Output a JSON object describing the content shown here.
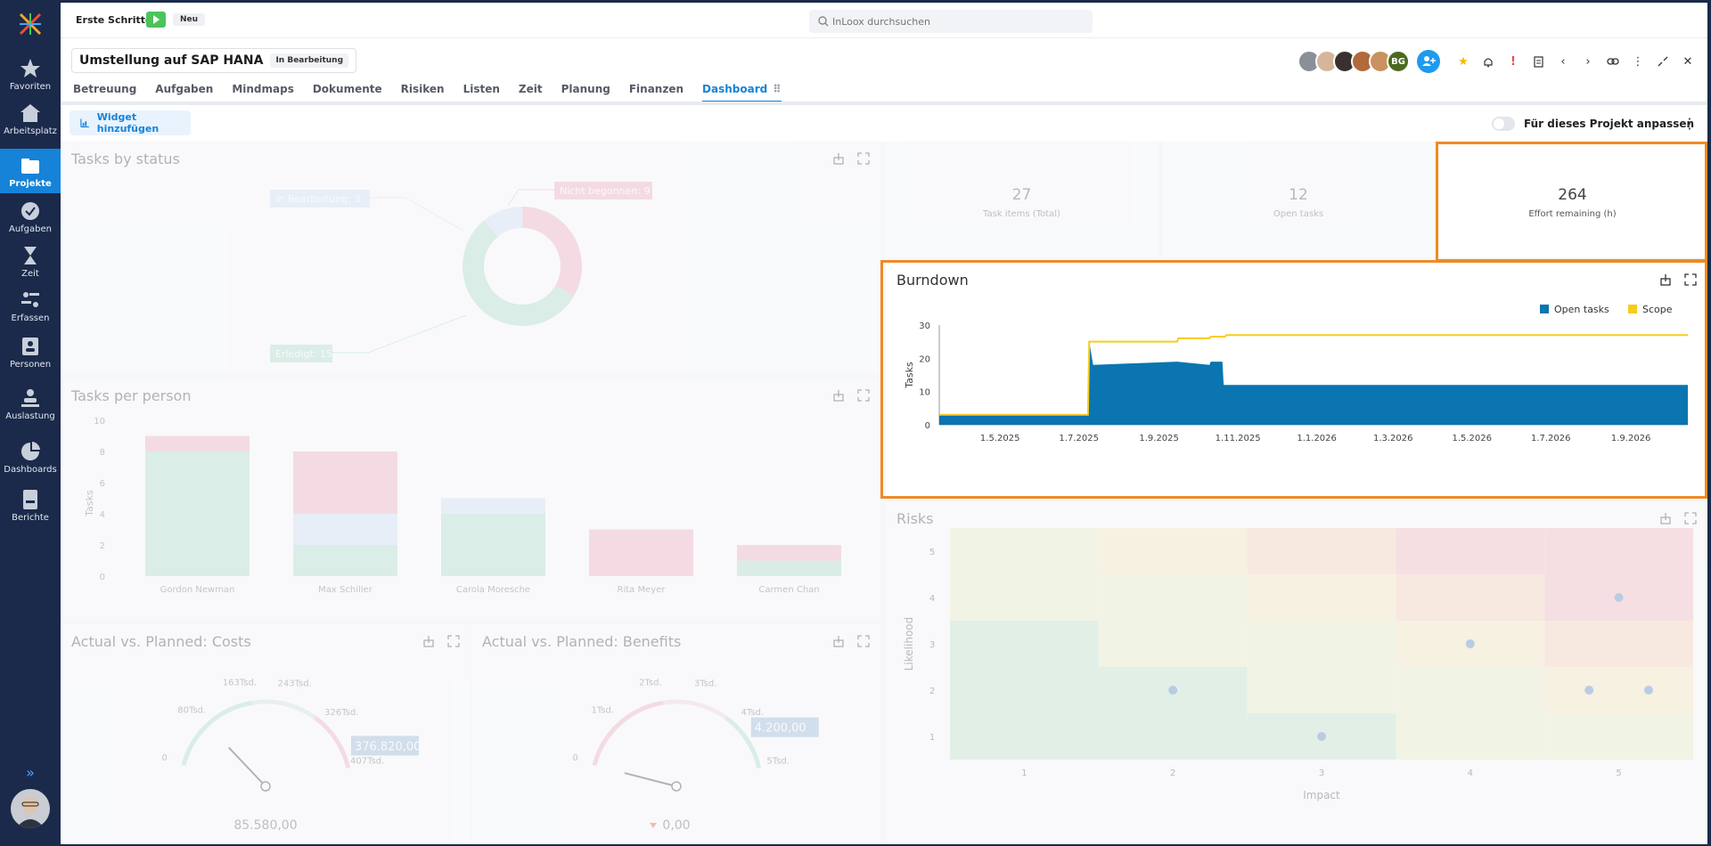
{
  "topbar": {
    "first_steps_label": "Erste Schritte:",
    "new_badge": "Neu",
    "search_placeholder": "InLoox durchsuchen"
  },
  "sidebar": {
    "items": [
      {
        "label": "Favoriten",
        "icon": "star-icon"
      },
      {
        "label": "Arbeitsplatz",
        "icon": "home-icon"
      },
      {
        "label": "Projekte",
        "icon": "folder-icon"
      },
      {
        "label": "Aufgaben",
        "icon": "check-circle-icon"
      },
      {
        "label": "Zeit",
        "icon": "hourglass-icon"
      },
      {
        "label": "Erfassen",
        "icon": "capture-icon"
      },
      {
        "label": "Personen",
        "icon": "contact-card-icon"
      },
      {
        "label": "Auslastung",
        "icon": "workload-icon"
      },
      {
        "label": "Dashboards",
        "icon": "pie-chart-icon"
      },
      {
        "label": "Berichte",
        "icon": "report-icon"
      }
    ],
    "expand": "»"
  },
  "project": {
    "title": "Umstellung auf SAP HANA",
    "status": "In Bearbeitung",
    "avatar_initials": "BG",
    "tabs": [
      "Betreuung",
      "Aufgaben",
      "Mindmaps",
      "Dokumente",
      "Risiken",
      "Listen",
      "Zeit",
      "Planung",
      "Finanzen",
      "Dashboard"
    ],
    "active_tab": "Dashboard",
    "dashboard_tab_suffix": "⠿"
  },
  "toolbar": {
    "add_widget": "Widget hinzufügen",
    "customize_toggle": "Für dieses Projekt anpassen"
  },
  "widgets": {
    "tasks_by_status": {
      "title": "Tasks by status",
      "labels": [
        "In Bearbeitung: 3",
        "Nicht begonnen: 9",
        "Erledigt: 15"
      ],
      "values": [
        3,
        9,
        15
      ],
      "colors": [
        "#cfe0f5",
        "#f2a9bc",
        "#a8dcc6"
      ]
    },
    "tasks_per_person": {
      "title": "Tasks per person",
      "ylabel": "Tasks",
      "yticks": [
        "10",
        "8",
        "6",
        "4",
        "2",
        "0"
      ],
      "persons": [
        "Gordon Newman",
        "Max Schiller",
        "Carola Moresche",
        "Rita Meyer",
        "Carmen Chan"
      ],
      "stacks": [
        {
          "done": 8,
          "inprogress": 0,
          "notstarted": 1
        },
        {
          "done": 2,
          "inprogress": 2,
          "notstarted": 4
        },
        {
          "done": 4,
          "inprogress": 1,
          "notstarted": 0
        },
        {
          "done": 0,
          "inprogress": 0,
          "notstarted": 3
        },
        {
          "done": 1,
          "inprogress": 0,
          "notstarted": 1
        }
      ]
    },
    "costs": {
      "title": "Actual vs. Planned: Costs",
      "ticks": [
        "0",
        "80Tsd.",
        "163Tsd.",
        "243Tsd.",
        "326Tsd.",
        "407Tsd."
      ],
      "planned_label": "376.820,00",
      "actual_label": "85.580,00",
      "actual_value": 85580,
      "planned_value": 376820,
      "max_value": 407000
    },
    "benefits": {
      "title": "Actual vs. Planned: Benefits",
      "ticks": [
        "0",
        "1Tsd.",
        "2Tsd.",
        "3Tsd.",
        "4Tsd.",
        "5Tsd."
      ],
      "planned_label": "4.200,00",
      "actual_label": "0,00",
      "actual_value": 0,
      "planned_value": 4200,
      "max_value": 5000
    },
    "kpis": [
      {
        "value": "27",
        "label": "Task items (Total)"
      },
      {
        "value": "12",
        "label": "Open tasks"
      },
      {
        "value": "264",
        "label": "Effort remaining (h)"
      }
    ],
    "risks": {
      "title": "Risks",
      "xlabel": "Impact",
      "ylabel": "Likelihood",
      "xticks": [
        "1",
        "2",
        "3",
        "4",
        "5"
      ],
      "yticks": [
        "5",
        "4",
        "3",
        "2",
        "1"
      ]
    }
  },
  "chart_data": [
    {
      "type": "area",
      "title": "Burndown",
      "xlabel": "",
      "ylabel": "Tasks",
      "ylim": [
        0,
        30
      ],
      "yticks": [
        "30",
        "20",
        "10",
        "0"
      ],
      "xticks": [
        "1.5.2025",
        "1.7.2025",
        "1.9.2025",
        "1.11.2025",
        "1.1.2026",
        "1.3.2026",
        "1.5.2026",
        "1.7.2026",
        "1.9.2026"
      ],
      "legend_position": "top-right",
      "series": [
        {
          "name": "Open tasks",
          "color": "#0a75b0",
          "x": [
            "2025-03-15",
            "2025-07-08",
            "2025-07-09",
            "2025-07-12",
            "2025-09-15",
            "2025-10-10",
            "2025-10-11",
            "2025-10-20",
            "2025-10-21",
            "2026-10-15"
          ],
          "values": [
            3,
            3,
            25,
            18,
            19,
            18,
            19,
            19,
            12,
            12
          ]
        },
        {
          "name": "Scope",
          "color": "#f7cc1b",
          "x": [
            "2025-03-15",
            "2025-07-08",
            "2025-07-09",
            "2025-09-15",
            "2025-09-16",
            "2025-10-10",
            "2025-10-11",
            "2025-10-22",
            "2025-10-23",
            "2026-10-15"
          ],
          "values": [
            3,
            3,
            25,
            25,
            26,
            26,
            26.5,
            26.5,
            27,
            27
          ]
        }
      ]
    },
    {
      "type": "scatter",
      "title": "Risks",
      "xlabel": "Impact",
      "ylabel": "Likelihood",
      "xlim": [
        0.5,
        5.5
      ],
      "ylim": [
        0.5,
        5.5
      ],
      "points": [
        {
          "x": 2,
          "y": 2
        },
        {
          "x": 3,
          "y": 1
        },
        {
          "x": 4,
          "y": 3
        },
        {
          "x": 5,
          "y": 4
        },
        {
          "x": 4.8,
          "y": 2
        },
        {
          "x": 5.2,
          "y": 2
        }
      ]
    }
  ]
}
